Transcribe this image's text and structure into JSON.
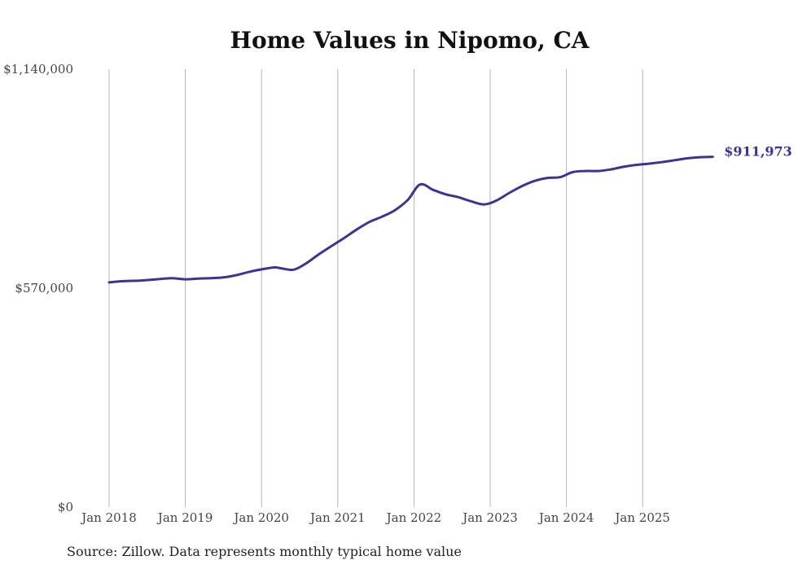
{
  "colors": {
    "line": "#3a3493",
    "grid": "#b5b5b5",
    "text": "#444444"
  },
  "source": "Source: Zillow. Data represents monthly typical home value",
  "chart_data": {
    "type": "line",
    "title": "Home Values in Nipomo, CA",
    "xlabel": "",
    "ylabel": "",
    "grid": "vertical",
    "ylim": [
      0,
      1140000
    ],
    "y_ticks": [
      {
        "value": 0,
        "label": "$0"
      },
      {
        "value": 570000,
        "label": "$570,000"
      },
      {
        "value": 1140000,
        "label": "$1,140,000"
      }
    ],
    "x_ticks": [
      {
        "value": 2018.0,
        "label": "Jan 2018"
      },
      {
        "value": 2019.0,
        "label": "Jan 2019"
      },
      {
        "value": 2020.0,
        "label": "Jan 2020"
      },
      {
        "value": 2021.0,
        "label": "Jan 2021"
      },
      {
        "value": 2022.0,
        "label": "Jan 2022"
      },
      {
        "value": 2023.0,
        "label": "Jan 2023"
      },
      {
        "value": 2024.0,
        "label": "Jan 2024"
      },
      {
        "value": 2025.0,
        "label": "Jan 2025"
      }
    ],
    "xlim": [
      2017.0,
      2026.0
    ],
    "series": [
      {
        "name": "Typical home value",
        "end_label": "$911,973",
        "x": [
          2018.0,
          2018.17,
          2018.42,
          2018.67,
          2018.83,
          2019.0,
          2019.17,
          2019.33,
          2019.5,
          2019.67,
          2019.83,
          2020.0,
          2020.17,
          2020.25,
          2020.42,
          2020.58,
          2020.75,
          2020.92,
          2021.08,
          2021.25,
          2021.42,
          2021.58,
          2021.75,
          2021.92,
          2022.08,
          2022.25,
          2022.42,
          2022.58,
          2022.75,
          2022.92,
          2023.08,
          2023.25,
          2023.42,
          2023.58,
          2023.75,
          2023.92,
          2024.08,
          2024.25,
          2024.42,
          2024.58,
          2024.75,
          2024.92,
          2025.08,
          2025.25,
          2025.42,
          2025.58,
          2025.75,
          2025.92
        ],
        "values": [
          585000,
          588000,
          590000,
          594000,
          596000,
          593000,
          595000,
          596000,
          598000,
          604000,
          612000,
          619000,
          624000,
          622000,
          618000,
          634000,
          658000,
          680000,
          700000,
          723000,
          743000,
          756000,
          773000,
          800000,
          840000,
          826000,
          814000,
          807000,
          796000,
          788000,
          798000,
          818000,
          836000,
          849000,
          857000,
          859000,
          872000,
          875000,
          875000,
          879000,
          886000,
          891000,
          894000,
          898000,
          903000,
          908000,
          911000,
          911973
        ],
        "smooth_hints": [
          2022.33,
          2022.42
        ]
      }
    ]
  }
}
